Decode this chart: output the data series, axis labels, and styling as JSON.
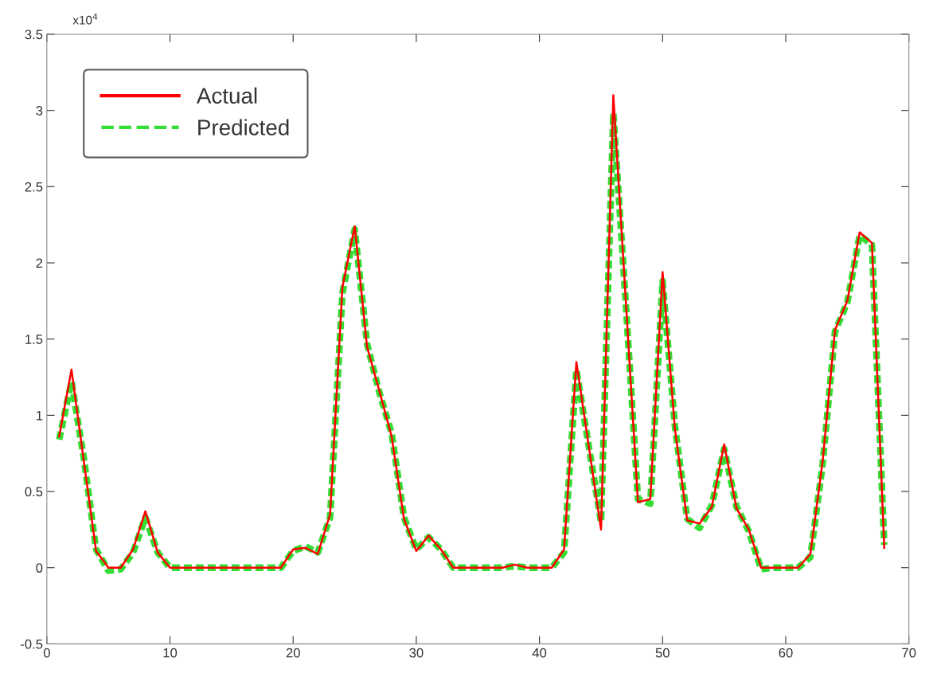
{
  "chart_data": {
    "type": "line",
    "annotations": [
      "x10$^{4}$"
    ],
    "x": [
      1,
      2,
      3,
      4,
      5,
      6,
      7,
      8,
      9,
      10,
      11,
      12,
      13,
      14,
      15,
      16,
      17,
      18,
      19,
      20,
      21,
      22,
      23,
      24,
      25,
      26,
      27,
      28,
      29,
      30,
      31,
      32,
      33,
      34,
      35,
      36,
      37,
      38,
      39,
      40,
      41,
      42,
      43,
      44,
      45,
      46,
      47,
      48,
      49,
      50,
      51,
      52,
      53,
      54,
      55,
      56,
      57,
      58,
      59,
      60,
      61,
      62,
      63,
      64,
      65,
      66,
      67,
      68
    ],
    "series": [
      {
        "name": "Actual",
        "color": "#ff0000",
        "line_style": "solid",
        "values": [
          0.86,
          1.3,
          0.7,
          0.11,
          0,
          0,
          0.12,
          0.37,
          0.1,
          0,
          0,
          0,
          0,
          0,
          0,
          0,
          0,
          0,
          0,
          0.12,
          0.13,
          0.09,
          0.35,
          1.84,
          2.24,
          1.45,
          1.16,
          0.86,
          0.32,
          0.11,
          0.21,
          0.12,
          0,
          0,
          0,
          0,
          0,
          0.02,
          0,
          0,
          0,
          0.12,
          1.35,
          0.8,
          0.25,
          3.1,
          1.77,
          0.43,
          0.45,
          1.94,
          0.91,
          0.31,
          0.29,
          0.4,
          0.81,
          0.39,
          0.25,
          0,
          0,
          0,
          0,
          0.09,
          0.7,
          1.56,
          1.75,
          2.2,
          2.13,
          0.13
        ]
      },
      {
        "name": "Predicted",
        "color": "#33dd33",
        "line_style": "dashed",
        "values": [
          0.84,
          1.22,
          0.72,
          0.12,
          -0.02,
          -0.01,
          0.1,
          0.33,
          0.1,
          0,
          0,
          0,
          0,
          0,
          0,
          0,
          0,
          0,
          0,
          0.11,
          0.14,
          0.1,
          0.33,
          1.8,
          2.22,
          1.47,
          1.15,
          0.88,
          0.33,
          0.12,
          0.2,
          0.12,
          0,
          0,
          0,
          0,
          0,
          0.01,
          0,
          0,
          0,
          0.1,
          1.3,
          0.8,
          0.3,
          2.98,
          1.75,
          0.45,
          0.42,
          1.88,
          0.93,
          0.32,
          0.26,
          0.41,
          0.78,
          0.4,
          0.24,
          -0.01,
          0,
          0,
          0,
          0.07,
          0.68,
          1.55,
          1.74,
          2.18,
          2.12,
          0.15
        ]
      }
    ],
    "xlim": [
      0,
      70
    ],
    "xticks": [
      0,
      10,
      20,
      30,
      40,
      50,
      60,
      70
    ],
    "ylim": [
      -0.5,
      3.5
    ],
    "yticks": [
      -0.5,
      0,
      0.5,
      1,
      1.5,
      2,
      2.5,
      3,
      3.5
    ],
    "grid": false,
    "legend": "top left",
    "marker": "none"
  }
}
